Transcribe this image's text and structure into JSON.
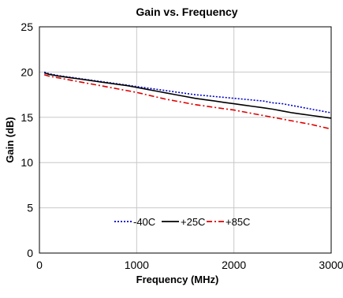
{
  "chart_data": {
    "type": "line",
    "title": "Gain vs. Frequency",
    "xlabel": "Frequency (MHz)",
    "ylabel": "Gain (dB)",
    "xlim": [
      0,
      3000
    ],
    "ylim": [
      0,
      25
    ],
    "xticks": [
      0,
      1000,
      2000,
      3000
    ],
    "yticks": [
      0,
      5,
      10,
      15,
      20,
      25
    ],
    "grid": true,
    "legend_position": "lower-center",
    "series": [
      {
        "name": "-40C",
        "color": "#0000cc",
        "dash": "dotted",
        "x": [
          50,
          100,
          200,
          300,
          400,
          500,
          600,
          700,
          800,
          900,
          1000,
          1100,
          1200,
          1300,
          1400,
          1500,
          1600,
          1700,
          1800,
          1900,
          2000,
          2100,
          2200,
          2300,
          2400,
          2500,
          2600,
          2700,
          2800,
          2900,
          3000
        ],
        "y": [
          20.0,
          19.8,
          19.6,
          19.45,
          19.3,
          19.15,
          19.0,
          18.85,
          18.7,
          18.55,
          18.4,
          18.25,
          18.1,
          17.95,
          17.8,
          17.65,
          17.5,
          17.4,
          17.3,
          17.2,
          17.1,
          17.0,
          16.9,
          16.8,
          16.6,
          16.5,
          16.3,
          16.1,
          15.9,
          15.7,
          15.5
        ]
      },
      {
        "name": "+25C",
        "color": "#000000",
        "dash": "solid",
        "x": [
          50,
          100,
          200,
          300,
          400,
          500,
          600,
          700,
          800,
          900,
          1000,
          1100,
          1200,
          1300,
          1400,
          1500,
          1600,
          1700,
          1800,
          1900,
          2000,
          2100,
          2200,
          2300,
          2400,
          2500,
          2600,
          2700,
          2800,
          2900,
          3000
        ],
        "y": [
          19.9,
          19.75,
          19.55,
          19.4,
          19.25,
          19.1,
          18.95,
          18.8,
          18.65,
          18.5,
          18.3,
          18.1,
          17.9,
          17.7,
          17.5,
          17.3,
          17.1,
          16.95,
          16.8,
          16.65,
          16.5,
          16.35,
          16.2,
          16.05,
          15.9,
          15.7,
          15.5,
          15.35,
          15.2,
          15.05,
          14.9
        ]
      },
      {
        "name": "+85C",
        "color": "#dd0000",
        "dash": "dashdot",
        "x": [
          50,
          100,
          200,
          300,
          400,
          500,
          600,
          700,
          800,
          900,
          1000,
          1100,
          1200,
          1300,
          1400,
          1500,
          1600,
          1700,
          1800,
          1900,
          2000,
          2100,
          2200,
          2300,
          2400,
          2500,
          2600,
          2700,
          2800,
          2900,
          3000
        ],
        "y": [
          19.7,
          19.55,
          19.35,
          19.15,
          18.95,
          18.75,
          18.55,
          18.35,
          18.15,
          17.95,
          17.75,
          17.5,
          17.25,
          17.0,
          16.8,
          16.6,
          16.4,
          16.25,
          16.1,
          15.95,
          15.8,
          15.6,
          15.4,
          15.2,
          15.0,
          14.8,
          14.6,
          14.4,
          14.2,
          13.95,
          13.7
        ]
      }
    ]
  }
}
